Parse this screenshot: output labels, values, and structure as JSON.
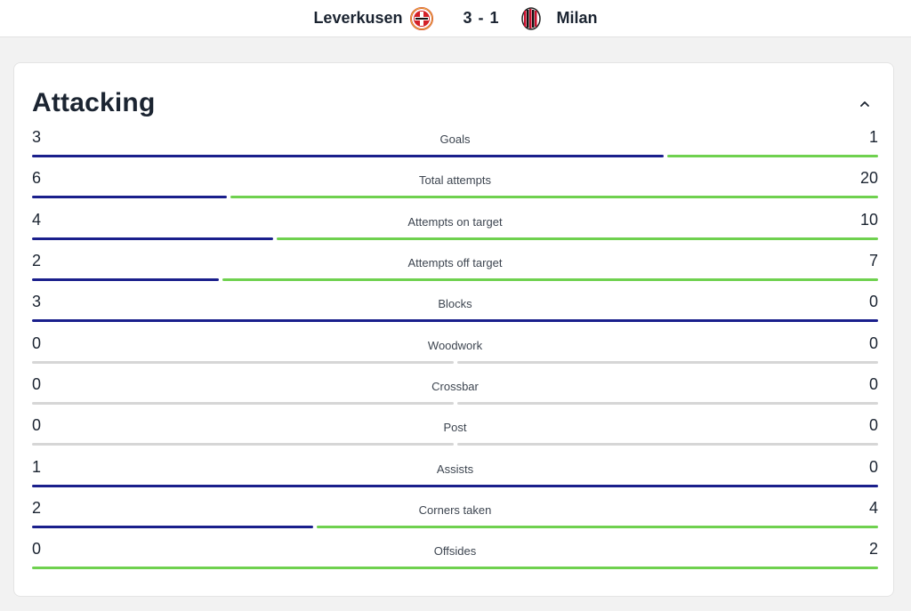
{
  "header": {
    "home_team": "Leverkusen",
    "score": "3 - 1",
    "away_team": "Milan"
  },
  "colors": {
    "home": "#1a1f8c",
    "away": "#6fd14f",
    "empty": "#d6d6d6"
  },
  "section": {
    "title": "Attacking",
    "collapse_icon": "chevron-up-icon"
  },
  "stats": [
    {
      "label": "Goals",
      "home": "3",
      "away": "1"
    },
    {
      "label": "Total attempts",
      "home": "6",
      "away": "20"
    },
    {
      "label": "Attempts on target",
      "home": "4",
      "away": "10"
    },
    {
      "label": "Attempts off target",
      "home": "2",
      "away": "7"
    },
    {
      "label": "Blocks",
      "home": "3",
      "away": "0"
    },
    {
      "label": "Woodwork",
      "home": "0",
      "away": "0"
    },
    {
      "label": "Crossbar",
      "home": "0",
      "away": "0"
    },
    {
      "label": "Post",
      "home": "0",
      "away": "0"
    },
    {
      "label": "Assists",
      "home": "1",
      "away": "0"
    },
    {
      "label": "Corners taken",
      "home": "2",
      "away": "4"
    },
    {
      "label": "Offsides",
      "home": "0",
      "away": "2"
    }
  ]
}
